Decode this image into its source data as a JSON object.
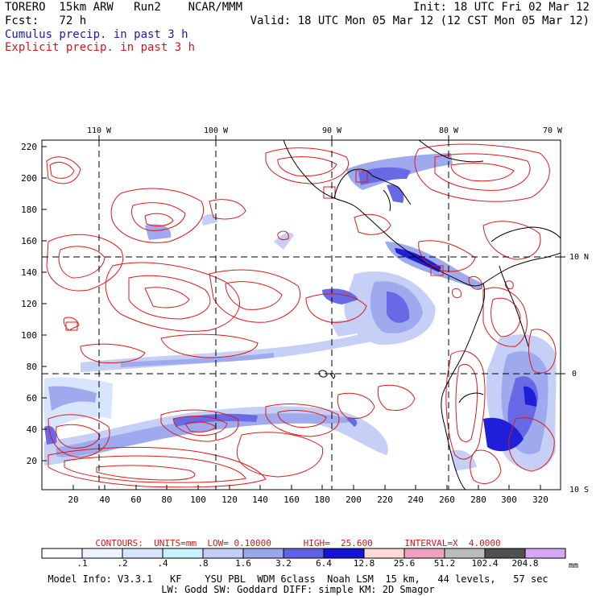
{
  "header": {
    "line1_left": "TORERO  15km ARW   Run2    NCAR/MMM",
    "line1_right": "Init: 18 UTC Fri 02 Mar 12",
    "line2_left": "Fcst:   72 h",
    "line2_right": "Valid: 18 UTC Mon 05 Mar 12 (12 CST Mon 05 Mar 12)",
    "legend_cumulus": "Cumulus precip. in past 3 h",
    "legend_explicit": "Explicit precip. in past 3 h"
  },
  "map": {
    "lon_labels": [
      "110 W",
      "100 W",
      "90 W",
      "80 W",
      "70 W"
    ],
    "lat_labels": [
      "10 N",
      "0",
      "10 S"
    ],
    "y_ticks": [
      "220",
      "200",
      "180",
      "160",
      "140",
      "120",
      "100",
      "80",
      "60",
      "40",
      "20"
    ],
    "x_ticks": [
      "20",
      "40",
      "60",
      "80",
      "100",
      "120",
      "140",
      "160",
      "180",
      "200",
      "220",
      "240",
      "260",
      "280",
      "300",
      "320"
    ]
  },
  "contours": {
    "text": "CONTOURS:  UNITS=mm  LOW= 0.10000      HIGH=  25.600      INTERVAL=X  4.0000"
  },
  "colorbar": {
    "labels": [
      ".1",
      ".2",
      ".4",
      ".8",
      "1.6",
      "3.2",
      "6.4",
      "12.8",
      "25.6",
      "51.2",
      "102.4",
      "204.8"
    ],
    "unit": "mm",
    "colors": [
      "#ffffff",
      "#eef4ff",
      "#d6e4ff",
      "#c8f0ff",
      "#c4cdf5",
      "#9aa6ee",
      "#5f61e4",
      "#1414d8",
      "#ffd8d8",
      "#f0a0c0",
      "#bcbcbc",
      "#505050",
      "#d6a8f4"
    ]
  },
  "footer": {
    "line1": "Model Info: V3.3.1   KF    YSU PBL  WDM 6class  Noah LSM  15 km,   44 levels,   57 sec",
    "line2": "LW: Godd SW: Goddard DIFF: simple KM: 2D Smagor"
  }
}
